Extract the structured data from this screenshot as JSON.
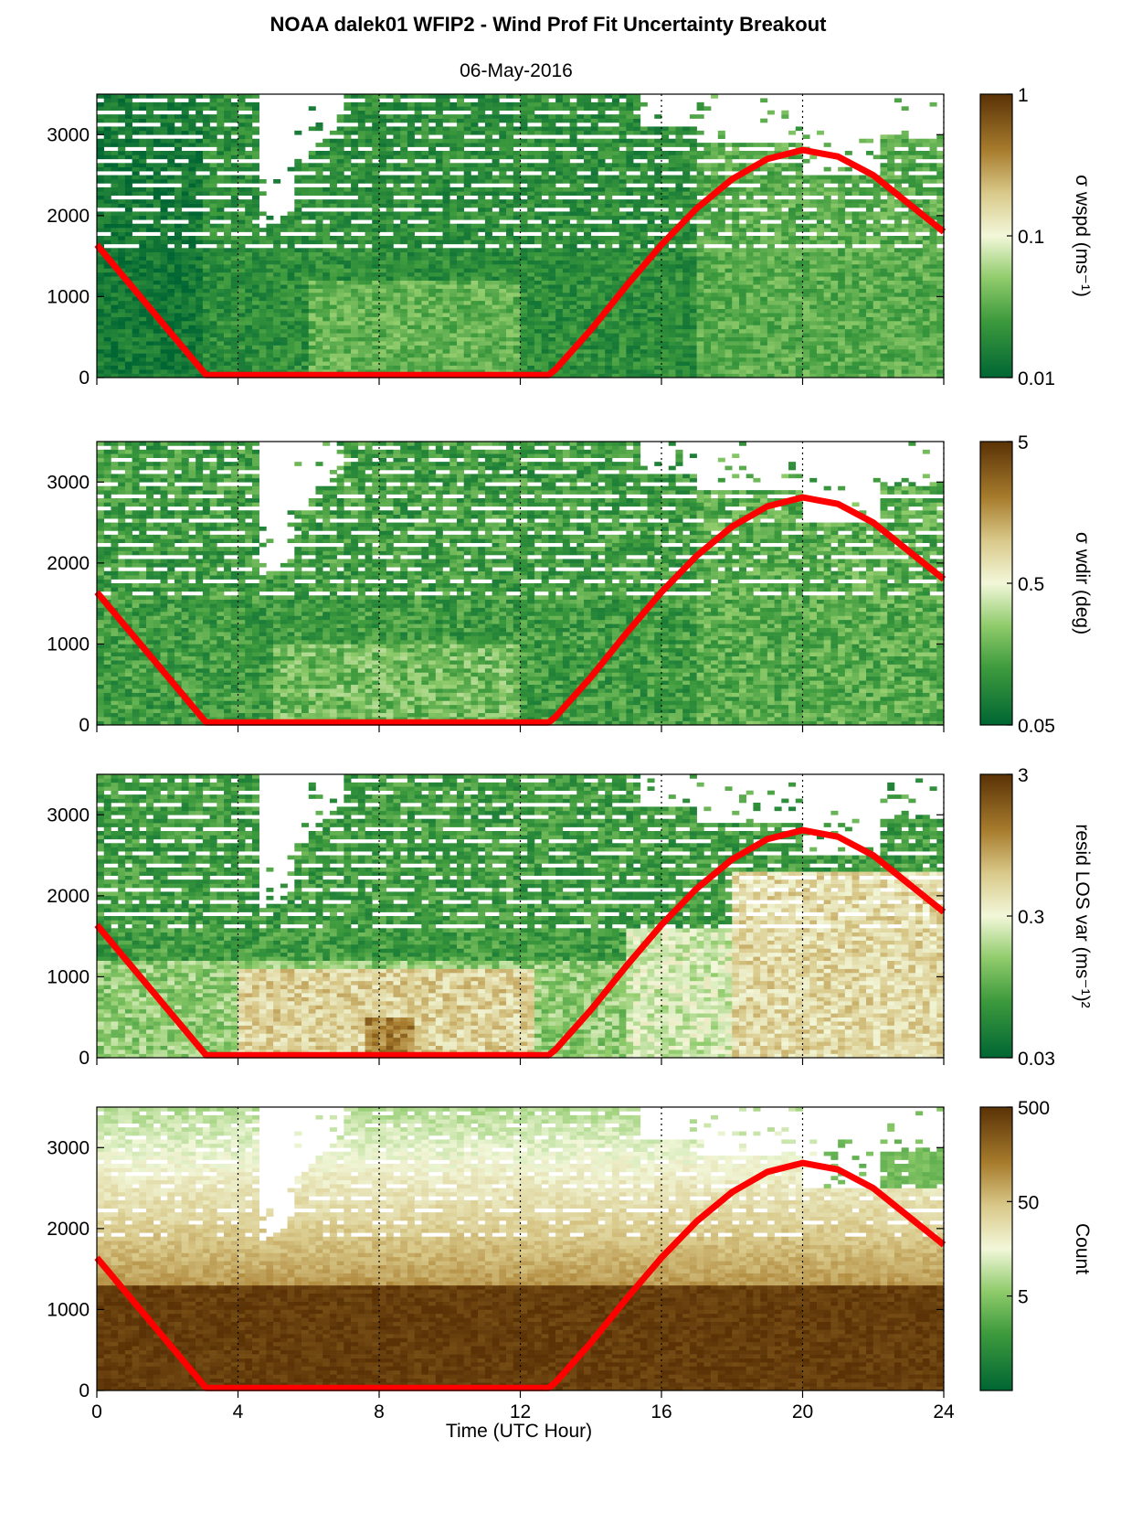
{
  "title": "NOAA dalek01 WFIP2 - Wind Prof Fit Uncertainty Breakout",
  "subtitle": "06-May-2016",
  "xlabel": "Time (UTC Hour)",
  "colors": {
    "low": "#006633",
    "mid": "#f2f7d9",
    "high": "#5a3206",
    "curve": "#ff0000"
  },
  "chart_data": [
    {
      "type": "heatmap",
      "title": "",
      "xlabel": "",
      "ylabel": "",
      "x_range": [
        0,
        24
      ],
      "xticks": [
        0,
        4,
        8,
        12,
        16,
        20,
        24
      ],
      "ylim": [
        0,
        3500
      ],
      "yticks": [
        0,
        1000,
        2000,
        3000
      ],
      "colorbar": {
        "label": "σ wspd (ms⁻¹)",
        "scale": "log",
        "range": [
          0.01,
          1
        ],
        "ticks": [
          "0.01",
          "0.1",
          "1"
        ]
      },
      "vertical_dotted_lines": [
        4,
        8,
        12,
        16,
        20,
        24
      ],
      "overlay_series": {
        "x": [
          0,
          1,
          2,
          3,
          3.1,
          12.8,
          13,
          14,
          15,
          16,
          17,
          18,
          19,
          20,
          21,
          22,
          23,
          24
        ],
        "y": [
          1640,
          1120,
          600,
          80,
          30,
          30,
          100,
          590,
          1130,
          1640,
          2090,
          2450,
          2700,
          2810,
          2730,
          2500,
          2150,
          1800
        ]
      }
    },
    {
      "type": "heatmap",
      "title": "",
      "xlabel": "",
      "ylabel": "",
      "x_range": [
        0,
        24
      ],
      "xticks": [
        0,
        4,
        8,
        12,
        16,
        20,
        24
      ],
      "ylim": [
        0,
        3500
      ],
      "yticks": [
        0,
        1000,
        2000,
        3000
      ],
      "colorbar": {
        "label": "σ wdir (deg)",
        "scale": "log",
        "range": [
          0.05,
          5
        ],
        "ticks": [
          "0.05",
          "0.5",
          "5"
        ]
      },
      "vertical_dotted_lines": [
        4,
        8,
        12,
        16,
        20,
        24
      ],
      "overlay_series": {
        "x": [
          0,
          1,
          2,
          3,
          3.1,
          12.8,
          13,
          14,
          15,
          16,
          17,
          18,
          19,
          20,
          21,
          22,
          23,
          24
        ],
        "y": [
          1640,
          1120,
          600,
          80,
          30,
          30,
          100,
          590,
          1130,
          1640,
          2090,
          2450,
          2700,
          2810,
          2730,
          2500,
          2150,
          1800
        ]
      }
    },
    {
      "type": "heatmap",
      "title": "",
      "xlabel": "",
      "ylabel": "",
      "x_range": [
        0,
        24
      ],
      "xticks": [
        0,
        4,
        8,
        12,
        16,
        20,
        24
      ],
      "ylim": [
        0,
        3500
      ],
      "yticks": [
        0,
        1000,
        2000,
        3000
      ],
      "colorbar": {
        "label": "resid LOS var (ms⁻¹)²",
        "scale": "log",
        "range": [
          0.03,
          3
        ],
        "ticks": [
          "0.03",
          "0.3",
          "3"
        ]
      },
      "vertical_dotted_lines": [
        4,
        8,
        12,
        16,
        20,
        24
      ],
      "overlay_series": {
        "x": [
          0,
          1,
          2,
          3,
          3.1,
          12.8,
          13,
          14,
          15,
          16,
          17,
          18,
          19,
          20,
          21,
          22,
          23,
          24
        ],
        "y": [
          1640,
          1120,
          600,
          80,
          30,
          30,
          100,
          590,
          1130,
          1640,
          2090,
          2450,
          2700,
          2810,
          2730,
          2500,
          2150,
          1800
        ]
      }
    },
    {
      "type": "heatmap",
      "title": "",
      "xlabel": "Time (UTC Hour)",
      "ylabel": "",
      "x_range": [
        0,
        24
      ],
      "xticks": [
        0,
        4,
        8,
        12,
        16,
        20,
        24
      ],
      "ylim": [
        0,
        3500
      ],
      "yticks": [
        0,
        1000,
        2000,
        3000
      ],
      "colorbar": {
        "label": "Count",
        "scale": "log",
        "range": [
          0.5,
          500
        ],
        "ticks": [
          "5",
          "50",
          "500"
        ]
      },
      "vertical_dotted_lines": [
        4,
        8,
        12,
        16,
        20,
        24
      ],
      "overlay_series": {
        "x": [
          0,
          1,
          2,
          3,
          3.1,
          12.8,
          13,
          14,
          15,
          16,
          17,
          18,
          19,
          20,
          21,
          22,
          23,
          24
        ],
        "y": [
          1640,
          1120,
          600,
          80,
          30,
          30,
          100,
          590,
          1130,
          1640,
          2090,
          2450,
          2700,
          2810,
          2730,
          2500,
          2150,
          1800
        ]
      }
    }
  ]
}
